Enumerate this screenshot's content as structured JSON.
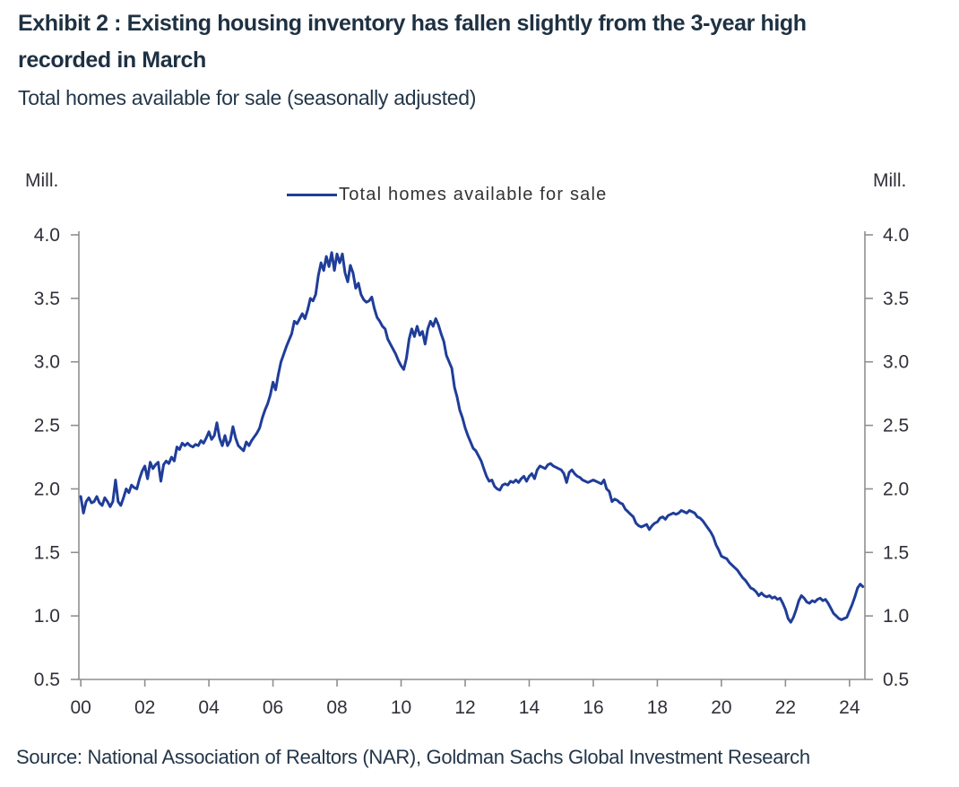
{
  "header": {
    "title_line1": "Exhibit 2 : Existing housing inventory has fallen slightly from the 3-year high",
    "title_line2": "recorded in March",
    "subtitle": "Total homes available for sale (seasonally adjusted)"
  },
  "legend": {
    "label": "Total homes available for sale"
  },
  "footer": {
    "source": "Source: National Association of Realtors (NAR), Goldman Sachs Global Investment Research"
  },
  "colors": {
    "title": "#1e3142",
    "body_text": "#233649",
    "axis": "#8f8f8f",
    "tick_label": "#30303a",
    "line": "#1f3d99"
  },
  "chart_data": {
    "type": "line",
    "title": "Total homes available for sale (seasonally adjusted)",
    "xlabel": "",
    "ylabel": "Mill.",
    "y_axis_label_left": "Mill.",
    "y_axis_label_right": "Mill.",
    "legend_entries": [
      "Total homes available for sale"
    ],
    "legend_position": "top-center",
    "grid": false,
    "xlim": [
      1999.94,
      2024.48
    ],
    "ylim": [
      0.5,
      4.0
    ],
    "x_tick_years": [
      2000,
      2002,
      2004,
      2006,
      2008,
      2010,
      2012,
      2014,
      2016,
      2018,
      2020,
      2022,
      2024
    ],
    "x_tick_labels": [
      "00",
      "02",
      "04",
      "06",
      "08",
      "10",
      "12",
      "14",
      "16",
      "18",
      "20",
      "22",
      "24"
    ],
    "y_tick_values": [
      0.5,
      1.0,
      1.5,
      2.0,
      2.5,
      3.0,
      3.5,
      4.0
    ],
    "y_tick_labels": [
      "0.5",
      "1.0",
      "1.5",
      "2.0",
      "2.5",
      "3.0",
      "3.5",
      "4.0"
    ],
    "series": [
      {
        "name": "Total homes available for sale",
        "color": "#1f3d99",
        "unit": "millions of homes",
        "start_year": 2000,
        "step_months": 1,
        "values": [
          1.94,
          1.81,
          1.9,
          1.93,
          1.89,
          1.9,
          1.94,
          1.89,
          1.87,
          1.93,
          1.9,
          1.86,
          1.9,
          2.07,
          1.9,
          1.87,
          1.93,
          2.0,
          1.97,
          2.03,
          2.01,
          2.0,
          2.08,
          2.14,
          2.18,
          2.08,
          2.21,
          2.16,
          2.19,
          2.21,
          2.06,
          2.19,
          2.22,
          2.2,
          2.25,
          2.22,
          2.33,
          2.31,
          2.36,
          2.34,
          2.36,
          2.34,
          2.33,
          2.35,
          2.34,
          2.38,
          2.36,
          2.4,
          2.45,
          2.39,
          2.42,
          2.52,
          2.4,
          2.34,
          2.42,
          2.34,
          2.38,
          2.49,
          2.4,
          2.34,
          2.32,
          2.3,
          2.37,
          2.34,
          2.38,
          2.41,
          2.44,
          2.48,
          2.56,
          2.62,
          2.67,
          2.74,
          2.84,
          2.78,
          2.9,
          3.0,
          3.06,
          3.12,
          3.17,
          3.22,
          3.32,
          3.3,
          3.34,
          3.38,
          3.34,
          3.41,
          3.5,
          3.48,
          3.53,
          3.68,
          3.78,
          3.72,
          3.83,
          3.75,
          3.86,
          3.72,
          3.85,
          3.78,
          3.85,
          3.7,
          3.63,
          3.76,
          3.7,
          3.58,
          3.62,
          3.53,
          3.49,
          3.47,
          3.48,
          3.51,
          3.42,
          3.35,
          3.32,
          3.28,
          3.26,
          3.18,
          3.14,
          3.1,
          3.06,
          3.01,
          2.97,
          2.94,
          3.03,
          3.18,
          3.26,
          3.2,
          3.28,
          3.21,
          3.24,
          3.14,
          3.26,
          3.32,
          3.28,
          3.34,
          3.29,
          3.22,
          3.16,
          3.05,
          3.0,
          2.95,
          2.8,
          2.72,
          2.62,
          2.56,
          2.48,
          2.42,
          2.37,
          2.32,
          2.3,
          2.26,
          2.22,
          2.16,
          2.1,
          2.06,
          2.07,
          2.02,
          2.0,
          1.99,
          2.03,
          2.04,
          2.03,
          2.06,
          2.05,
          2.07,
          2.05,
          2.08,
          2.1,
          2.06,
          2.1,
          2.12,
          2.08,
          2.15,
          2.18,
          2.17,
          2.16,
          2.19,
          2.2,
          2.18,
          2.17,
          2.16,
          2.15,
          2.12,
          2.05,
          2.13,
          2.15,
          2.12,
          2.1,
          2.09,
          2.07,
          2.06,
          2.05,
          2.06,
          2.07,
          2.06,
          2.05,
          2.04,
          2.07,
          2.0,
          1.98,
          1.9,
          1.92,
          1.91,
          1.89,
          1.88,
          1.84,
          1.82,
          1.8,
          1.78,
          1.73,
          1.71,
          1.7,
          1.71,
          1.72,
          1.68,
          1.71,
          1.73,
          1.74,
          1.77,
          1.78,
          1.76,
          1.79,
          1.8,
          1.81,
          1.8,
          1.81,
          1.83,
          1.82,
          1.81,
          1.83,
          1.82,
          1.81,
          1.78,
          1.77,
          1.75,
          1.72,
          1.69,
          1.66,
          1.62,
          1.56,
          1.52,
          1.47,
          1.46,
          1.45,
          1.42,
          1.4,
          1.38,
          1.36,
          1.33,
          1.3,
          1.28,
          1.25,
          1.22,
          1.21,
          1.19,
          1.16,
          1.18,
          1.16,
          1.15,
          1.16,
          1.14,
          1.15,
          1.13,
          1.14,
          1.1,
          1.05,
          0.98,
          0.95,
          0.99,
          1.05,
          1.12,
          1.16,
          1.14,
          1.11,
          1.1,
          1.12,
          1.11,
          1.13,
          1.14,
          1.12,
          1.13,
          1.1,
          1.06,
          1.02,
          1.0,
          0.98,
          0.97,
          0.98,
          0.99,
          1.04,
          1.09,
          1.15,
          1.22,
          1.25,
          1.23
        ]
      }
    ]
  }
}
